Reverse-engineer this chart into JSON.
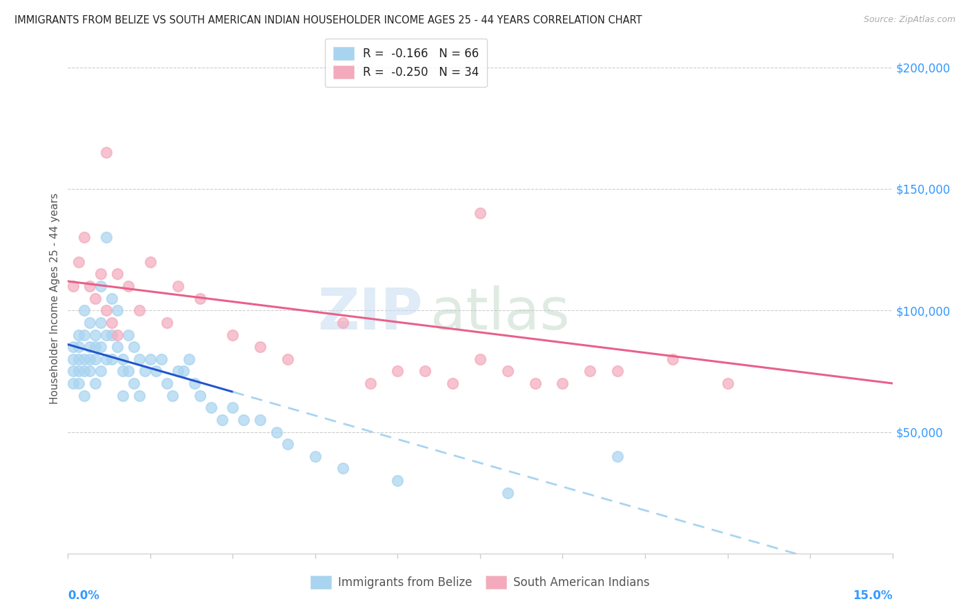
{
  "title": "IMMIGRANTS FROM BELIZE VS SOUTH AMERICAN INDIAN HOUSEHOLDER INCOME AGES 25 - 44 YEARS CORRELATION CHART",
  "source": "Source: ZipAtlas.com",
  "ylabel": "Householder Income Ages 25 - 44 years",
  "xlim": [
    0.0,
    0.15
  ],
  "ylim": [
    0,
    210000
  ],
  "yticks": [
    0,
    50000,
    100000,
    150000,
    200000
  ],
  "ytick_labels": [
    "",
    "$50,000",
    "$100,000",
    "$150,000",
    "$200,000"
  ],
  "watermark_zip": "ZIP",
  "watermark_atlas": "atlas",
  "color_blue_scatter": "#A8D4F0",
  "color_pink_scatter": "#F4AABC",
  "color_blue_line": "#2255CC",
  "color_pink_line": "#E8608A",
  "color_blue_dash": "#A8D4F0",
  "belize_x": [
    0.001,
    0.001,
    0.001,
    0.001,
    0.002,
    0.002,
    0.002,
    0.002,
    0.002,
    0.003,
    0.003,
    0.003,
    0.003,
    0.003,
    0.004,
    0.004,
    0.004,
    0.004,
    0.005,
    0.005,
    0.005,
    0.005,
    0.006,
    0.006,
    0.006,
    0.006,
    0.007,
    0.007,
    0.007,
    0.008,
    0.008,
    0.008,
    0.009,
    0.009,
    0.01,
    0.01,
    0.01,
    0.011,
    0.011,
    0.012,
    0.012,
    0.013,
    0.013,
    0.014,
    0.015,
    0.016,
    0.017,
    0.018,
    0.019,
    0.02,
    0.021,
    0.022,
    0.023,
    0.024,
    0.026,
    0.028,
    0.03,
    0.032,
    0.035,
    0.038,
    0.04,
    0.045,
    0.05,
    0.06,
    0.08,
    0.1
  ],
  "belize_y": [
    85000,
    80000,
    75000,
    70000,
    90000,
    85000,
    80000,
    75000,
    70000,
    100000,
    90000,
    80000,
    75000,
    65000,
    95000,
    85000,
    80000,
    75000,
    90000,
    85000,
    80000,
    70000,
    110000,
    95000,
    85000,
    75000,
    130000,
    90000,
    80000,
    105000,
    90000,
    80000,
    100000,
    85000,
    80000,
    75000,
    65000,
    90000,
    75000,
    85000,
    70000,
    80000,
    65000,
    75000,
    80000,
    75000,
    80000,
    70000,
    65000,
    75000,
    75000,
    80000,
    70000,
    65000,
    60000,
    55000,
    60000,
    55000,
    55000,
    50000,
    45000,
    40000,
    35000,
    30000,
    25000,
    40000
  ],
  "indian_x": [
    0.001,
    0.002,
    0.003,
    0.004,
    0.005,
    0.006,
    0.007,
    0.008,
    0.009,
    0.011,
    0.013,
    0.015,
    0.018,
    0.02,
    0.024,
    0.03,
    0.035,
    0.04,
    0.05,
    0.055,
    0.06,
    0.065,
    0.07,
    0.075,
    0.08,
    0.085,
    0.09,
    0.095,
    0.1,
    0.11,
    0.12,
    0.007,
    0.009,
    0.075
  ],
  "indian_y": [
    110000,
    120000,
    130000,
    110000,
    105000,
    115000,
    100000,
    95000,
    115000,
    110000,
    100000,
    120000,
    95000,
    110000,
    105000,
    90000,
    85000,
    80000,
    95000,
    70000,
    75000,
    75000,
    70000,
    80000,
    75000,
    70000,
    70000,
    75000,
    75000,
    80000,
    70000,
    165000,
    90000,
    140000
  ]
}
